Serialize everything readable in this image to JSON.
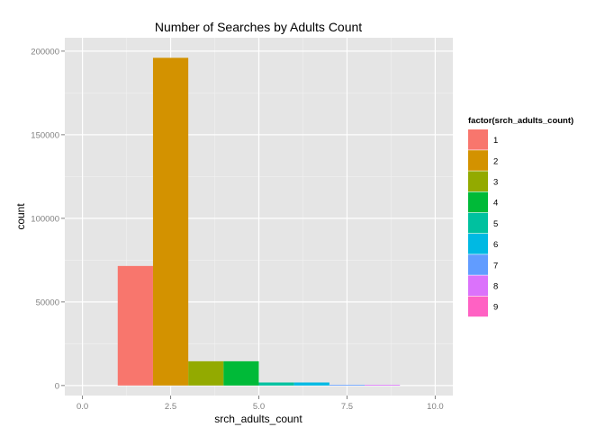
{
  "chart_data": {
    "type": "bar",
    "title": "Number of Searches by Adults Count",
    "xlabel": "srch_adults_count",
    "ylabel": "count",
    "xlim": [
      -0.5,
      10.5
    ],
    "ylim": [
      -6000,
      208000
    ],
    "x_ticks": [
      0,
      2.5,
      5,
      7.5,
      10
    ],
    "x_tick_labels": [
      "0.0",
      "2.5",
      "5.0",
      "7.5",
      "10.0"
    ],
    "y_ticks": [
      0,
      50000,
      100000,
      150000,
      200000
    ],
    "y_tick_labels": [
      "0",
      "50000",
      "100000",
      "150000",
      "200000"
    ],
    "grid": true,
    "legend_title": "factor(srch_adults_count)",
    "legend_position": "right",
    "bin_width": 1,
    "series": [
      {
        "name": "1",
        "x_start": 1,
        "x_end": 2,
        "value": 71500,
        "color": "#F8766D"
      },
      {
        "name": "2",
        "x_start": 2,
        "x_end": 3,
        "value": 196000,
        "color": "#D39200"
      },
      {
        "name": "3",
        "x_start": 3,
        "x_end": 4,
        "value": 14500,
        "color": "#93AA00"
      },
      {
        "name": "4",
        "x_start": 4,
        "x_end": 5,
        "value": 14500,
        "color": "#00BA38"
      },
      {
        "name": "5",
        "x_start": 5,
        "x_end": 6,
        "value": 1800,
        "color": "#00C19F"
      },
      {
        "name": "6",
        "x_start": 6,
        "x_end": 7,
        "value": 1800,
        "color": "#00B9E3"
      },
      {
        "name": "7",
        "x_start": 7,
        "x_end": 8,
        "value": 400,
        "color": "#619CFF"
      },
      {
        "name": "8",
        "x_start": 8,
        "x_end": 9,
        "value": 400,
        "color": "#DB72FB"
      },
      {
        "name": "9",
        "x_start": 9,
        "x_end": 10,
        "value": 0,
        "color": "#FF61C3"
      }
    ]
  }
}
